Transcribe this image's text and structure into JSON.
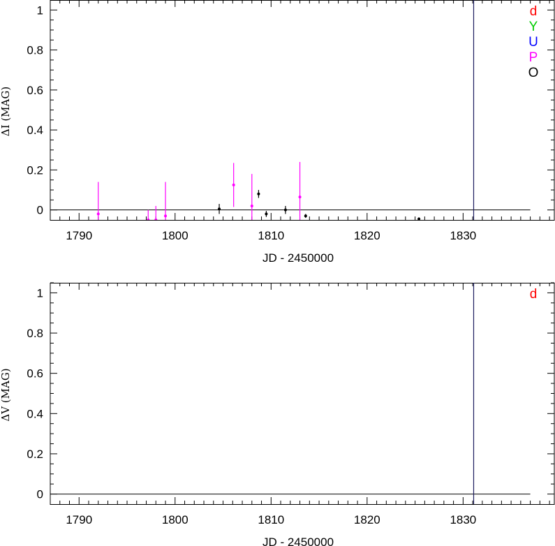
{
  "chart_data": [
    {
      "type": "scatter",
      "ylabel": "ΔI (MAG)",
      "xlabel": "JD - 2450000",
      "xlim": [
        1787,
        1839.5
      ],
      "ylim": [
        -0.05,
        1.05
      ],
      "xticks": [
        1790,
        1800,
        1810,
        1820,
        1830
      ],
      "xtick_labels": [
        "1790",
        "1800",
        "1810",
        "1820",
        "1830"
      ],
      "yticks": [
        0,
        0.2,
        0.4,
        0.6,
        0.8,
        1
      ],
      "ytick_labels": [
        "0",
        "0.2",
        "0.4",
        "0.6",
        "0.8",
        "1"
      ],
      "baseline": {
        "y": 0,
        "x_end": 1837
      },
      "vline": {
        "x": 1831.1,
        "color": "#1a1a5e"
      },
      "legend": {
        "placement": "top-right",
        "entries": [
          {
            "label": "d",
            "color": "#ff0000"
          },
          {
            "label": "Y",
            "color": "#00cc00"
          },
          {
            "label": "U",
            "color": "#0000ff"
          },
          {
            "label": "P",
            "color": "#ff00ff"
          },
          {
            "label": "O",
            "color": "#000000"
          }
        ]
      },
      "series": [
        {
          "name": "P",
          "color": "#ff00ff",
          "points": [
            {
              "x": 1792.0,
              "y": -0.02,
              "err": 0.16
            },
            {
              "x": 1797.2,
              "y": -0.05,
              "err": 0.05
            },
            {
              "x": 1798.0,
              "y": -0.05,
              "err": 0.07
            },
            {
              "x": 1799.0,
              "y": -0.03,
              "err": 0.17
            },
            {
              "x": 1806.1,
              "y": 0.125,
              "err": 0.11
            },
            {
              "x": 1808.0,
              "y": 0.02,
              "err": 0.16
            },
            {
              "x": 1813.0,
              "y": 0.065,
              "err": 0.175
            }
          ]
        },
        {
          "name": "O",
          "color": "#000000",
          "points": [
            {
              "x": 1804.6,
              "y": 0.005,
              "err": 0.025
            },
            {
              "x": 1808.7,
              "y": 0.08,
              "err": 0.02
            },
            {
              "x": 1809.5,
              "y": -0.02,
              "err": 0.015
            },
            {
              "x": 1811.5,
              "y": 0.0,
              "err": 0.02
            },
            {
              "x": 1813.6,
              "y": -0.03,
              "err": 0.01
            },
            {
              "x": 1825.4,
              "y": -0.045,
              "err": 0.008
            }
          ]
        }
      ]
    },
    {
      "type": "scatter",
      "ylabel": "ΔV (MAG)",
      "xlabel": "JD - 2450000",
      "xlim": [
        1787,
        1839.5
      ],
      "ylim": [
        -0.05,
        1.05
      ],
      "xticks": [
        1790,
        1800,
        1810,
        1820,
        1830
      ],
      "xtick_labels": [
        "1790",
        "1800",
        "1810",
        "1820",
        "1830"
      ],
      "yticks": [
        0,
        0.2,
        0.4,
        0.6,
        0.8,
        1
      ],
      "ytick_labels": [
        "0",
        "0.2",
        "0.4",
        "0.6",
        "0.8",
        "1"
      ],
      "baseline": {
        "y": 0,
        "x_end": 1837
      },
      "vline": {
        "x": 1831.1,
        "color": "#1a1a5e"
      },
      "legend": {
        "placement": "top-right",
        "entries": [
          {
            "label": "d",
            "color": "#ff0000"
          }
        ]
      },
      "series": []
    }
  ]
}
